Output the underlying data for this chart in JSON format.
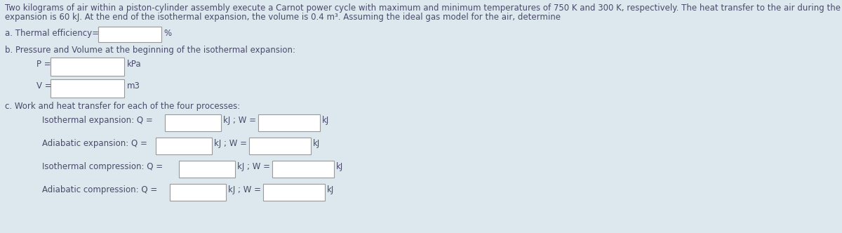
{
  "bg_color": "#dce8ed",
  "text_color": "#4a4a6a",
  "box_color": "#ffffff",
  "box_edge_color": "#999999",
  "font_size_body": 8.5,
  "paragraph_line1": "Two kilograms of air within a piston-cylinder assembly execute a Carnot power cycle with maximum and minimum temperatures of 750 K and 300 K, respectively. The heat transfer to the air during the isothermal",
  "paragraph_line2": "expansion is 60 kJ. At the end of the isothermal expansion, the volume is 0.4 m³. Assuming the ideal gas model for the air, determine",
  "section_a_label": "a. Thermal efficiency=",
  "section_a_unit": "%",
  "section_b_label": "b. Pressure and Volume at the beginning of the isothermal expansion:",
  "p_label": "P =",
  "p_unit": "kPa",
  "v_label": "V =",
  "v_unit": "m3",
  "section_c_label": "c. Work and heat transfer for each of the four processes:",
  "rows": [
    {
      "label": "Isothermal expansion: Q =",
      "unit1": "kJ ; W =",
      "unit2": "kJ"
    },
    {
      "label": "Adiabatic expansion: Q =",
      "unit1": "kJ ; W =",
      "unit2": "kJ"
    },
    {
      "label": "Isothermal compression: Q =",
      "unit1": "kJ ; W =",
      "unit2": "kJ"
    },
    {
      "label": "Adiabatic compression: Q =",
      "unit1": "kJ ; W =",
      "unit2": "kJ"
    }
  ]
}
